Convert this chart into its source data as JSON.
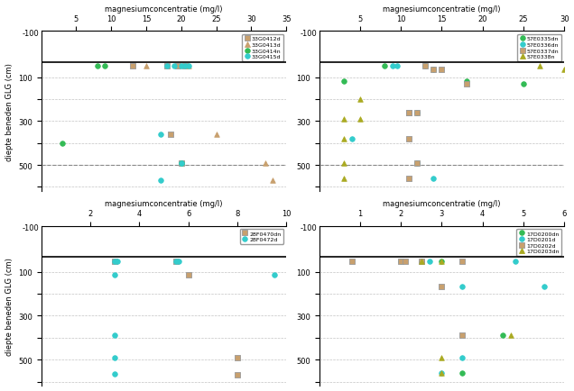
{
  "title": "magnesiumconcentratie (mg/l)",
  "ylabel": "diepte beneden GLG (cm)",
  "background_color": "#ffffff",
  "grid_color": "#aaaaaa",
  "subplots": [
    {
      "xlim": [
        0,
        35
      ],
      "xticks": [
        5,
        10,
        15,
        20,
        25,
        30,
        35
      ],
      "ylim": [
        620,
        -110
      ],
      "yticks": [
        100,
        200,
        300,
        400,
        500,
        600
      ],
      "ytick_labels": [
        "100",
        "",
        "300",
        "",
        "500",
        ""
      ],
      "ytop_label": "-100",
      "ytop_val": -100,
      "hline_y": 500,
      "glg_line_y": 30,
      "series": [
        {
          "label": "33G0412d",
          "color": "#c8a06e",
          "marker": "s",
          "x": [
            13,
            18,
            19.5,
            20.5
          ],
          "y": [
            50,
            50,
            50,
            50
          ]
        },
        {
          "label": "33G0412d",
          "color": "#c8a06e",
          "marker": "s",
          "x": [
            18.5,
            20
          ],
          "y": [
            360,
            490
          ]
        },
        {
          "label": "33G0413d",
          "color": "#c8a06e",
          "marker": "^",
          "x": [
            15,
            21
          ],
          "y": [
            50,
            50
          ]
        },
        {
          "label": "33G0413d",
          "color": "#c8a06e",
          "marker": "^",
          "x": [
            25,
            32,
            33
          ],
          "y": [
            360,
            490,
            570
          ]
        },
        {
          "label": "33G0414n",
          "color": "#33bb55",
          "marker": "o",
          "x": [
            8,
            9
          ],
          "y": [
            50,
            50
          ]
        },
        {
          "label": "33G0414n",
          "color": "#33bb55",
          "marker": "o",
          "x": [
            3,
            20
          ],
          "y": [
            400,
            490
          ]
        },
        {
          "label": "33G0415d",
          "color": "#33cccc",
          "marker": "o",
          "x": [
            18,
            19,
            20,
            21,
            20.5
          ],
          "y": [
            50,
            50,
            50,
            50,
            50
          ]
        },
        {
          "label": "33G0415d",
          "color": "#33cccc",
          "marker": "o",
          "x": [
            17,
            20
          ],
          "y": [
            360,
            490
          ]
        },
        {
          "label": "33G0415d",
          "color": "#33cccc",
          "marker": "o",
          "x": [
            17
          ],
          "y": [
            570
          ]
        }
      ],
      "legend_labels": [
        "33G0412d",
        "33G0413d",
        "33G0414n",
        "33G0415d"
      ],
      "legend_colors": [
        "#c8a06e",
        "#c8a06e",
        "#33bb55",
        "#33cccc"
      ],
      "legend_markers": [
        "s",
        "^",
        "o",
        "o"
      ]
    },
    {
      "xlim": [
        0,
        30
      ],
      "xticks": [
        5,
        10,
        15,
        20,
        25,
        30
      ],
      "ylim": [
        620,
        -110
      ],
      "yticks": [
        100,
        200,
        300,
        400,
        500,
        600
      ],
      "ytick_labels": [
        "100",
        "",
        "300",
        "",
        "500",
        ""
      ],
      "ytop_label": "-100",
      "ytop_val": -100,
      "hline_y": 500,
      "glg_line_y": 30,
      "series": [
        {
          "label": "57E0335dn",
          "color": "#33bb55",
          "marker": "o",
          "x": [
            3,
            8,
            13,
            14
          ],
          "y": [
            120,
            50,
            50,
            65
          ]
        },
        {
          "label": "57E0335dn",
          "color": "#33bb55",
          "marker": "o",
          "x": [
            18,
            25
          ],
          "y": [
            120,
            130
          ]
        },
        {
          "label": "57E0335dn",
          "color": "#33bb55",
          "marker": "o",
          "x": [
            12,
            12
          ],
          "y": [
            260,
            490
          ]
        },
        {
          "label": "57E0336dn",
          "color": "#33cccc",
          "marker": "o",
          "x": [
            9,
            9.5
          ],
          "y": [
            50,
            50
          ]
        },
        {
          "label": "57E0336dn",
          "color": "#33cccc",
          "marker": "o",
          "x": [
            11,
            11,
            12
          ],
          "y": [
            260,
            260,
            260
          ]
        },
        {
          "label": "57E0336dn",
          "color": "#33cccc",
          "marker": "o",
          "x": [
            4,
            12
          ],
          "y": [
            380,
            490
          ]
        },
        {
          "label": "57E0336dn",
          "color": "#33cccc",
          "marker": "o",
          "x": [
            14
          ],
          "y": [
            560
          ]
        },
        {
          "label": "57E0337dn",
          "color": "#c8a06e",
          "marker": "s",
          "x": [
            13,
            14,
            15,
            18
          ],
          "y": [
            50,
            65,
            65,
            130
          ]
        },
        {
          "label": "57E0337dn",
          "color": "#c8a06e",
          "marker": "s",
          "x": [
            12,
            11,
            11
          ],
          "y": [
            260,
            260,
            260
          ]
        },
        {
          "label": "57E0337dn",
          "color": "#c8a06e",
          "marker": "s",
          "x": [
            11,
            12
          ],
          "y": [
            380,
            490
          ]
        },
        {
          "label": "57E0337dn",
          "color": "#c8a06e",
          "marker": "s",
          "x": [
            11
          ],
          "y": [
            560
          ]
        },
        {
          "label": "57E0338n",
          "color": "#aaaa22",
          "marker": "^",
          "x": [
            5,
            5
          ],
          "y": [
            200,
            290
          ]
        },
        {
          "label": "57E0338n",
          "color": "#aaaa22",
          "marker": "^",
          "x": [
            27,
            30
          ],
          "y": [
            50,
            65
          ]
        },
        {
          "label": "57E0338n",
          "color": "#aaaa22",
          "marker": "^",
          "x": [
            3,
            3
          ],
          "y": [
            290,
            380
          ]
        },
        {
          "label": "57E0338n",
          "color": "#aaaa22",
          "marker": "^",
          "x": [
            3,
            3
          ],
          "y": [
            490,
            560
          ]
        }
      ],
      "legend_labels": [
        "57E0335dn",
        "57E0336dn",
        "57E0337dn",
        "57E0338n"
      ],
      "legend_colors": [
        "#33bb55",
        "#33cccc",
        "#c8a06e",
        "#aaaa22"
      ],
      "legend_markers": [
        "o",
        "o",
        "s",
        "^"
      ]
    },
    {
      "xlim": [
        0,
        10
      ],
      "xticks": [
        2,
        4,
        6,
        8,
        10
      ],
      "ylim": [
        620,
        -110
      ],
      "yticks": [
        100,
        200,
        300,
        400,
        500,
        600
      ],
      "ytick_labels": [
        "100",
        "",
        "300",
        "",
        "500",
        ""
      ],
      "ytop_label": "-100",
      "ytop_val": -100,
      "hline_y": null,
      "glg_line_y": 30,
      "series": [
        {
          "label": "28F0470dn",
          "color": "#c8a06e",
          "marker": "s",
          "x": [
            3,
            5.5
          ],
          "y": [
            50,
            50
          ]
        },
        {
          "label": "28F0470dn",
          "color": "#c8a06e",
          "marker": "s",
          "x": [
            6
          ],
          "y": [
            115
          ]
        },
        {
          "label": "28F0470dn",
          "color": "#c8a06e",
          "marker": "s",
          "x": [
            8,
            8
          ],
          "y": [
            490,
            570
          ]
        },
        {
          "label": "28F0472d",
          "color": "#33cccc",
          "marker": "o",
          "x": [
            3,
            3.1,
            5.5,
            5.6
          ],
          "y": [
            50,
            50,
            50,
            50
          ]
        },
        {
          "label": "28F0472d",
          "color": "#33cccc",
          "marker": "o",
          "x": [
            3,
            9.5
          ],
          "y": [
            115,
            115
          ]
        },
        {
          "label": "28F0472d",
          "color": "#33cccc",
          "marker": "o",
          "x": [
            3
          ],
          "y": [
            390
          ]
        },
        {
          "label": "28F0472d",
          "color": "#33cccc",
          "marker": "o",
          "x": [
            3
          ],
          "y": [
            490
          ]
        },
        {
          "label": "28F0472d",
          "color": "#33cccc",
          "marker": "o",
          "x": [
            3
          ],
          "y": [
            565
          ]
        }
      ],
      "legend_labels": [
        "28F0470dn",
        "28F0472d"
      ],
      "legend_colors": [
        "#c8a06e",
        "#33cccc"
      ],
      "legend_markers": [
        "s",
        "o"
      ]
    },
    {
      "xlim": [
        0,
        6
      ],
      "xticks": [
        1,
        2,
        3,
        4,
        5,
        6
      ],
      "ylim": [
        620,
        -110
      ],
      "yticks": [
        100,
        200,
        300,
        400,
        500,
        600
      ],
      "ytick_labels": [
        "100",
        "",
        "300",
        "",
        "500",
        ""
      ],
      "ytop_label": "-100",
      "ytop_val": -100,
      "hline_y": null,
      "glg_line_y": 30,
      "series": [
        {
          "label": "17D0200dn",
          "color": "#33bb55",
          "marker": "o",
          "x": [
            2.5,
            3
          ],
          "y": [
            50,
            50
          ]
        },
        {
          "label": "17D0200dn",
          "color": "#33bb55",
          "marker": "o",
          "x": [
            4.5,
            3.5
          ],
          "y": [
            390,
            560
          ]
        },
        {
          "label": "17D0201d",
          "color": "#33cccc",
          "marker": "o",
          "x": [
            2,
            2.7,
            3.5,
            4.8
          ],
          "y": [
            50,
            50,
            165,
            50
          ]
        },
        {
          "label": "17D0201d",
          "color": "#33cccc",
          "marker": "o",
          "x": [
            3.5,
            5.5
          ],
          "y": [
            490,
            165
          ]
        },
        {
          "label": "17D0201d",
          "color": "#33cccc",
          "marker": "o",
          "x": [
            3
          ],
          "y": [
            560
          ]
        },
        {
          "label": "17D0202d",
          "color": "#c8a06e",
          "marker": "s",
          "x": [
            0.8,
            2,
            2.1,
            3.5
          ],
          "y": [
            50,
            50,
            50,
            50
          ]
        },
        {
          "label": "17D0202d",
          "color": "#c8a06e",
          "marker": "s",
          "x": [
            2.5,
            3
          ],
          "y": [
            50,
            165
          ]
        },
        {
          "label": "17D0202d",
          "color": "#c8a06e",
          "marker": "s",
          "x": [
            3.5
          ],
          "y": [
            390
          ]
        },
        {
          "label": "17D0203dn",
          "color": "#aaaa22",
          "marker": "^",
          "x": [
            2.5,
            3
          ],
          "y": [
            50,
            50
          ]
        },
        {
          "label": "17D0203dn",
          "color": "#aaaa22",
          "marker": "^",
          "x": [
            4.7,
            3
          ],
          "y": [
            390,
            490
          ]
        },
        {
          "label": "17D0203dn",
          "color": "#aaaa22",
          "marker": "^",
          "x": [
            3
          ],
          "y": [
            560
          ]
        }
      ],
      "legend_labels": [
        "17D0200dn",
        "17D0201d",
        "17D0202d",
        "17D0203dn"
      ],
      "legend_colors": [
        "#33bb55",
        "#33cccc",
        "#c8a06e",
        "#aaaa22"
      ],
      "legend_markers": [
        "o",
        "o",
        "s",
        "^"
      ]
    }
  ]
}
